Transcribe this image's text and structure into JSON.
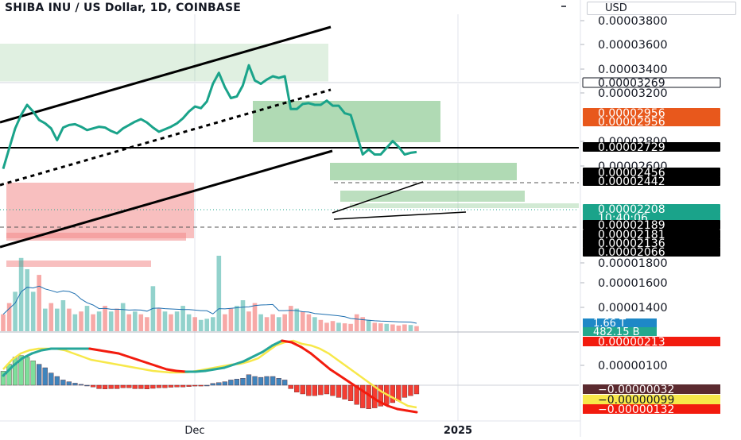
{
  "title": "SHIBA INU / US Dollar, 1D, COINBASE",
  "currency": "USD",
  "x_ticks": [
    {
      "label": "Dec",
      "pos": 245
    },
    {
      "label": "2025",
      "pos": 576
    }
  ],
  "price_axis_ticks": [
    "0.00003800",
    "0.00003600",
    "0.00003400",
    "0.00003200",
    "0.00002800",
    "0.00002600",
    "0.00001800",
    "0.00001600",
    "0.00001400"
  ],
  "macd_axis_ticks": [
    "0.00000100"
  ],
  "price_labels": [
    {
      "text": "0.00003269",
      "bg": "#ffffff",
      "fg": "#131722",
      "border": "#131722"
    },
    {
      "text": "0.00002956",
      "bg": "#e8581c",
      "fg": "#ffffff"
    },
    {
      "text": "0.00002956",
      "bg": "#e8581c",
      "fg": "#ffffff"
    },
    {
      "text": "0.00002729",
      "bg": "#000000",
      "fg": "#ffffff"
    },
    {
      "text": "0.00002456",
      "bg": "#000000",
      "fg": "#ffffff"
    },
    {
      "text": "0.00002442",
      "bg": "#000000",
      "fg": "#ffffff"
    },
    {
      "text": "0.00002208",
      "bg": "#1aa38a",
      "fg": "#ffffff"
    },
    {
      "text": "10:40:06",
      "bg": "#1aa38a",
      "fg": "#ffffff"
    },
    {
      "text": "0.00002189",
      "bg": "#000000",
      "fg": "#ffffff"
    },
    {
      "text": "0.00002181",
      "bg": "#000000",
      "fg": "#ffffff"
    },
    {
      "text": "0.00002136",
      "bg": "#000000",
      "fg": "#ffffff"
    },
    {
      "text": "0.00002066",
      "bg": "#000000",
      "fg": "#ffffff"
    }
  ],
  "volume_labels": [
    {
      "text": "1.66 T",
      "bg": "#1e88c7",
      "fg": "#ffffff"
    },
    {
      "text": "482.15 B",
      "bg": "#23a88e",
      "fg": "#ffffff"
    }
  ],
  "macd_labels": [
    {
      "text": "0.00000213",
      "bg": "#f21b0e",
      "fg": "#ffffff"
    },
    {
      "text": "−0.00000032",
      "bg": "#5b2a2f",
      "fg": "#ffffff"
    },
    {
      "text": "−0.00000099",
      "bg": "#f7e84a",
      "fg": "#131722"
    },
    {
      "text": "−0.00000132",
      "bg": "#f21b0e",
      "fg": "#ffffff"
    }
  ],
  "colors": {
    "price_line": "#1aa38a",
    "up": "#26a69a",
    "down": "#ef5350",
    "zone_green": "#8fca94",
    "zone_red": "#f28b8b",
    "macd_line": "#f7e84a",
    "signal_line_up": "#26a69a",
    "signal_line_down": "#f21b0e",
    "ma_line": "#1e6fb0"
  },
  "chart_data": {
    "type": "line",
    "title": "SHIBA INU / US Dollar, 1D, COINBASE",
    "price_series": [
      2.04e-05,
      2.28e-05,
      2.52e-05,
      2.68e-05,
      2.8e-05,
      2.72e-05,
      2.62e-05,
      2.58e-05,
      2.52e-05,
      2.38e-05,
      2.53e-05,
      2.56e-05,
      2.57e-05,
      2.54e-05,
      2.5e-05,
      2.52e-05,
      2.54e-05,
      2.53e-05,
      2.49e-05,
      2.46e-05,
      2.52e-05,
      2.56e-05,
      2.6e-05,
      2.63e-05,
      2.59e-05,
      2.53e-05,
      2.48e-05,
      2.51e-05,
      2.54e-05,
      2.58e-05,
      2.64e-05,
      2.72e-05,
      2.78e-05,
      2.76e-05,
      2.84e-05,
      3.05e-05,
      3.18e-05,
      3.01e-05,
      2.88e-05,
      2.9e-05,
      3.03e-05,
      3.27e-05,
      3.09e-05,
      3.05e-05,
      3.1e-05,
      3.14e-05,
      3.12e-05,
      3.14e-05,
      2.75e-05,
      2.75e-05,
      2.81e-05,
      2.82e-05,
      2.8e-05,
      2.8e-05,
      2.85e-05,
      2.79e-05,
      2.79e-05,
      2.7e-05,
      2.68e-05,
      2.45e-05,
      2.21e-05,
      2.27e-05,
      2.21e-05,
      2.21e-05,
      2.29e-05,
      2.37e-05,
      2.3e-05,
      2.21e-05,
      2.23e-05,
      2.24e-05
    ],
    "volume_series": [
      0.3,
      0.5,
      0.7,
      1.3,
      1.1,
      0.7,
      1.0,
      0.4,
      0.5,
      0.4,
      0.55,
      0.4,
      0.3,
      0.35,
      0.45,
      0.3,
      0.35,
      0.45,
      0.35,
      0.4,
      0.5,
      0.3,
      0.35,
      0.3,
      0.25,
      0.8,
      0.4,
      0.35,
      0.3,
      0.35,
      0.45,
      0.3,
      0.25,
      0.2,
      0.22,
      0.25,
      1.34,
      0.3,
      0.4,
      0.45,
      0.55,
      0.35,
      0.5,
      0.3,
      0.25,
      0.3,
      0.25,
      0.3,
      0.45,
      0.4,
      0.35,
      0.3,
      0.25,
      0.2,
      0.15,
      0.18,
      0.15,
      0.14,
      0.13,
      0.3,
      0.25,
      0.2,
      0.15,
      0.14,
      0.13,
      0.12,
      0.1,
      0.12,
      0.11,
      0.09
    ],
    "volume_up": [
      false,
      false,
      true,
      true,
      true,
      true,
      false,
      true,
      false,
      true,
      true,
      false,
      true,
      false,
      true,
      false,
      true,
      false,
      true,
      false,
      true,
      false,
      true,
      false,
      false,
      true,
      false,
      true,
      false,
      true,
      true,
      true,
      false,
      true,
      true,
      true,
      true,
      false,
      false,
      true,
      true,
      false,
      false,
      true,
      false,
      false,
      true,
      false,
      false,
      true,
      false,
      false,
      true,
      false,
      false,
      false,
      true,
      false,
      false,
      false,
      false,
      true,
      false,
      false,
      true,
      false,
      false,
      false,
      true,
      false
    ],
    "macd_histogram": [
      0.8,
      1.2,
      1.6,
      1.7,
      1.6,
      1.4,
      1.2,
      1.0,
      0.7,
      0.5,
      0.3,
      0.2,
      0.12,
      0.05,
      0.0,
      -0.1,
      -0.2,
      -0.22,
      -0.2,
      -0.2,
      -0.15,
      -0.15,
      -0.2,
      -0.2,
      -0.22,
      -0.18,
      -0.15,
      -0.15,
      -0.12,
      -0.1,
      -0.1,
      -0.08,
      -0.05,
      -0.05,
      0.0,
      0.1,
      0.15,
      0.2,
      0.3,
      0.35,
      0.4,
      0.6,
      0.5,
      0.45,
      0.5,
      0.5,
      0.4,
      0.3,
      -0.2,
      -0.4,
      -0.5,
      -0.6,
      -0.6,
      -0.55,
      -0.5,
      -0.6,
      -0.7,
      -0.8,
      -0.9,
      -1.1,
      -1.3,
      -1.35,
      -1.3,
      -1.2,
      -1.1,
      -1.0,
      -0.9,
      -0.7,
      -0.6,
      -0.5
    ],
    "macd_line": [
      1.0,
      1.6,
      2.0,
      2.2,
      2.3,
      2.3,
      2.3,
      2.2,
      2.0,
      1.8,
      1.6,
      1.5,
      1.4,
      1.3,
      1.2,
      1.1,
      1.0,
      0.9,
      0.85,
      0.8,
      0.8,
      0.82,
      0.9,
      1.0,
      1.1,
      1.2,
      1.3,
      1.35,
      1.5,
      1.7,
      2.1,
      2.5,
      2.7,
      2.8,
      2.6,
      2.5,
      2.3,
      2.0,
      1.6,
      1.2,
      0.8,
      0.4,
      0.0,
      -0.4,
      -0.7,
      -1.0,
      -1.3,
      -1.4
    ],
    "signal_line": [
      0.6,
      1.2,
      1.7,
      2.0,
      2.2,
      2.3,
      2.3,
      2.3,
      2.3,
      2.3,
      2.2,
      2.1,
      2.0,
      1.8,
      1.6,
      1.4,
      1.2,
      1.0,
      0.9,
      0.85,
      0.85,
      0.9,
      1.0,
      1.1,
      1.3,
      1.5,
      1.8,
      2.1,
      2.5,
      2.8,
      2.7,
      2.4,
      2.0,
      1.5,
      1.0,
      0.6,
      0.2,
      -0.2,
      -0.6,
      -1.0,
      -1.3,
      -1.5,
      -1.6,
      -1.7
    ]
  }
}
